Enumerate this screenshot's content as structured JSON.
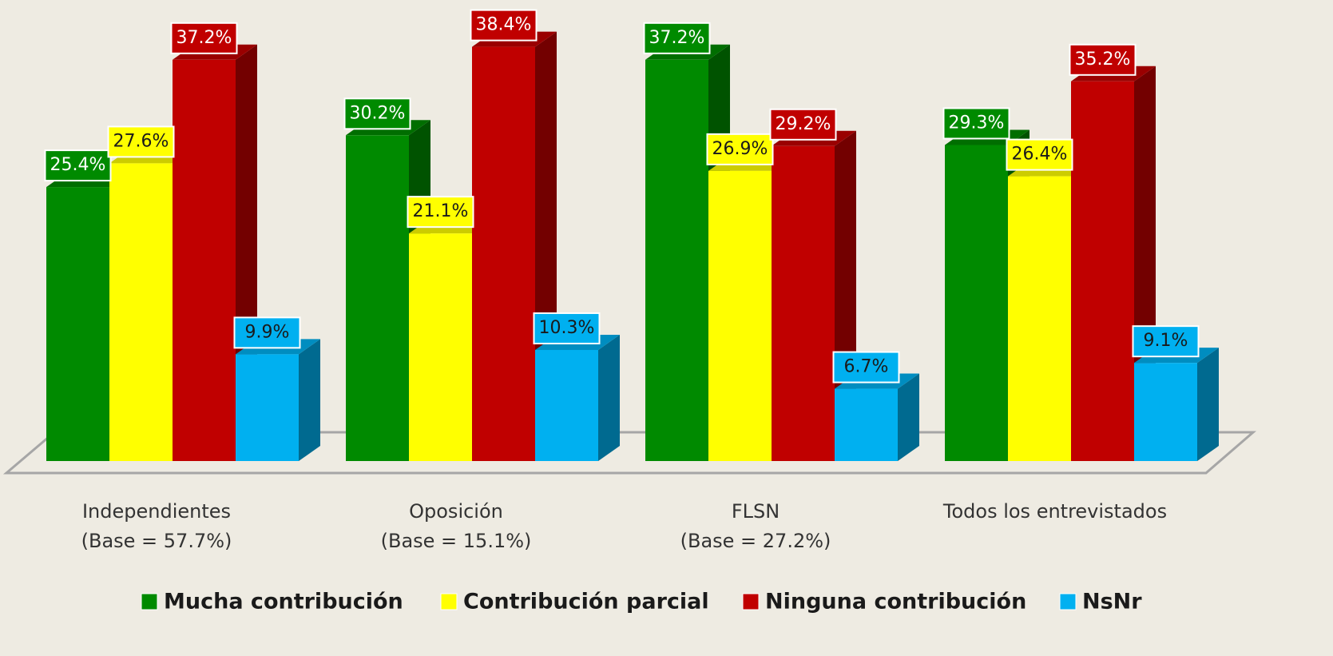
{
  "chart_data": {
    "type": "bar3d",
    "categories": [
      "Independientes",
      "Oposición",
      "FLSN",
      "Todos los entrevistados"
    ],
    "category_bases": [
      "(Base = 57.7%)",
      "(Base = 15.1%)",
      "(Base = 27.2%)",
      null
    ],
    "series": [
      {
        "name": "Mucha contribución",
        "color": "#008a00",
        "values": [
          25.4,
          30.2,
          37.2,
          29.3
        ],
        "value_labels": [
          "25.4%",
          "30.2%",
          "37.2%",
          "29.3%"
        ]
      },
      {
        "name": "Contribución parcial",
        "color": "#ffff00",
        "values": [
          27.6,
          21.1,
          26.9,
          26.4
        ],
        "value_labels": [
          "27.6%",
          "21.1%",
          "26.9%",
          "26.4%"
        ]
      },
      {
        "name": "Ninguna contribución",
        "color": "#c00000",
        "values": [
          37.2,
          38.4,
          29.2,
          35.2
        ],
        "value_labels": [
          "37.2%",
          "38.4%",
          "29.2%",
          "35.2%"
        ]
      },
      {
        "name": "NsNr",
        "color": "#00b0f0",
        "values": [
          9.9,
          10.3,
          6.7,
          9.1
        ],
        "value_labels": [
          "9.9%",
          "10.3%",
          "6.7%",
          "9.1%"
        ]
      }
    ],
    "legend": "bottom"
  }
}
